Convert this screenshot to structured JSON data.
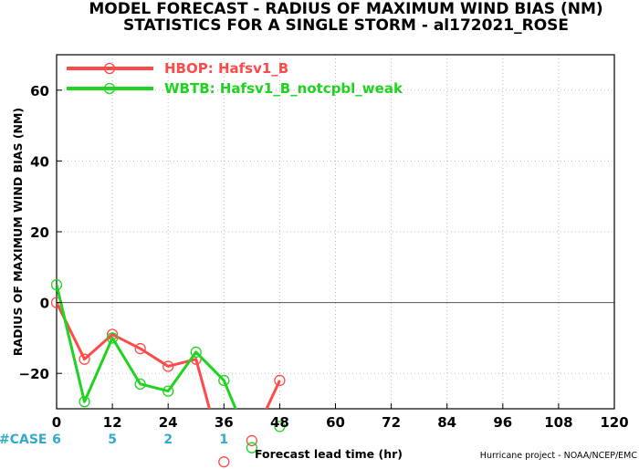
{
  "chart_data": {
    "type": "line",
    "title_line1": "MODEL FORECAST - RADIUS OF MAXIMUM WIND BIAS (NM)",
    "title_line2": "STATISTICS FOR A SINGLE STORM - al172021_ROSE",
    "ylabel": "RADIUS OF MAXIMUM WIND BIAS (NM)",
    "xlabel": "Forecast lead time (hr)",
    "credit": "Hurricane project - NOAA/NCEP/EMC",
    "xlim": [
      0,
      120
    ],
    "ylim": [
      -30,
      70
    ],
    "xticks": [
      0,
      12,
      24,
      36,
      48,
      60,
      72,
      84,
      96,
      108,
      120
    ],
    "yticks": [
      -20,
      0,
      20,
      40,
      60
    ],
    "grid": true,
    "legend_position": "top-left",
    "case_label": "#CASE",
    "case_counts": [
      {
        "x": 0,
        "n": "6"
      },
      {
        "x": 12,
        "n": "5"
      },
      {
        "x": 24,
        "n": "2"
      },
      {
        "x": 36,
        "n": "1"
      }
    ],
    "series": [
      {
        "name": "HBOP: Hafsv1_B",
        "color": "#ff4a4a",
        "x": [
          0,
          6,
          12,
          18,
          24,
          30,
          36,
          42,
          48
        ],
        "y": [
          0,
          -16,
          -9,
          -13,
          -18,
          -16,
          -45,
          -39,
          -22
        ]
      },
      {
        "name": "WBTB: Hafsv1_B_notcpbl_weak",
        "color": "#1ed41e",
        "x": [
          0,
          6,
          12,
          18,
          24,
          30,
          36,
          42,
          48
        ],
        "y": [
          5,
          -28,
          -10,
          -23,
          -25,
          -14,
          -22,
          -41,
          -35
        ]
      }
    ]
  }
}
